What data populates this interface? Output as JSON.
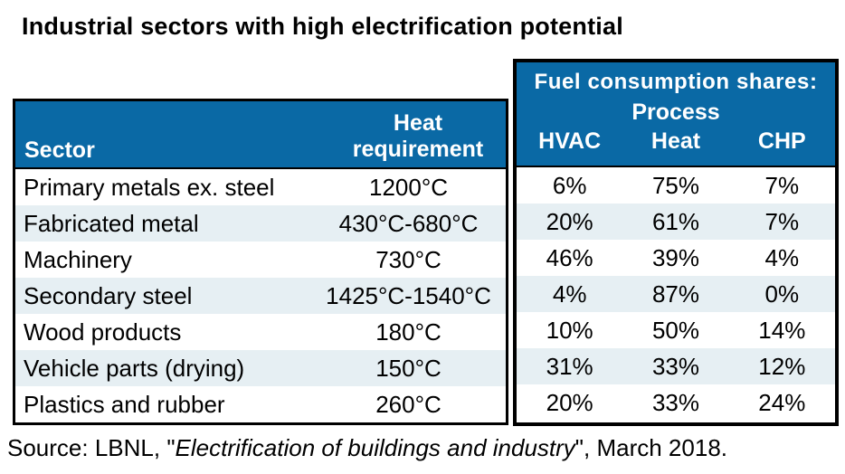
{
  "title": "Industrial sectors with high electrification potential",
  "table": {
    "left_header": {
      "sector_label": "Sector",
      "heat_requirement_line1": "Heat",
      "heat_requirement_line2": "requirement"
    },
    "right_header": {
      "group_label": "Fuel consumption shares:",
      "process_line1": "Process",
      "col_hvac": "HVAC",
      "col_process_heat": "Heat",
      "col_chp": "CHP"
    },
    "rows": [
      {
        "sector": "Primary metals ex. steel",
        "heat_requirement": "1200°C",
        "hvac": "6%",
        "process_heat": "75%",
        "chp": "7%"
      },
      {
        "sector": "Fabricated metal",
        "heat_requirement": "430°C-680°C",
        "hvac": "20%",
        "process_heat": "61%",
        "chp": "7%"
      },
      {
        "sector": "Machinery",
        "heat_requirement": "730°C",
        "hvac": "46%",
        "process_heat": "39%",
        "chp": "4%"
      },
      {
        "sector": "Secondary steel",
        "heat_requirement": "1425°C-1540°C",
        "hvac": "4%",
        "process_heat": "87%",
        "chp": "0%"
      },
      {
        "sector": "Wood products",
        "heat_requirement": "180°C",
        "hvac": "10%",
        "process_heat": "50%",
        "chp": "14%"
      },
      {
        "sector": "Vehicle parts (drying)",
        "heat_requirement": "150°C",
        "hvac": "31%",
        "process_heat": "33%",
        "chp": "12%"
      },
      {
        "sector": "Plastics and rubber",
        "heat_requirement": "260°C",
        "hvac": "20%",
        "process_heat": "33%",
        "chp": "24%"
      }
    ]
  },
  "source": {
    "prefix": "Source: LBNL, \"",
    "italic": "Electrification of buildings and industry",
    "suffix": "\", March 2018."
  },
  "colors": {
    "header_blue": "#0A69A5",
    "row_stripe": "#E6EFF3",
    "border_black": "#000000",
    "header_text": "#FFFFFF",
    "body_text": "#000000"
  },
  "chart_data": {
    "type": "table",
    "title": "Industrial sectors with high electrification potential",
    "column_group_label": "Fuel consumption shares:",
    "columns": [
      "Sector",
      "Heat requirement",
      "HVAC",
      "Process Heat",
      "CHP"
    ],
    "rows": [
      [
        "Primary metals ex. steel",
        "1200°C",
        "6%",
        "75%",
        "7%"
      ],
      [
        "Fabricated metal",
        "430°C-680°C",
        "20%",
        "61%",
        "7%"
      ],
      [
        "Machinery",
        "730°C",
        "46%",
        "39%",
        "4%"
      ],
      [
        "Secondary steel",
        "1425°C-1540°C",
        "4%",
        "87%",
        "0%"
      ],
      [
        "Wood products",
        "180°C",
        "10%",
        "50%",
        "14%"
      ],
      [
        "Vehicle parts (drying)",
        "150°C",
        "31%",
        "33%",
        "12%"
      ],
      [
        "Plastics and rubber",
        "260°C",
        "20%",
        "33%",
        "24%"
      ]
    ],
    "fuel_share_values_pct": {
      "hvac": [
        6,
        20,
        46,
        4,
        10,
        31,
        20
      ],
      "process_heat": [
        75,
        61,
        39,
        87,
        50,
        33,
        33
      ],
      "chp": [
        7,
        7,
        4,
        0,
        14,
        12,
        24
      ]
    },
    "source": "Source: LBNL, \"Electrification of buildings and industry\", March 2018."
  }
}
